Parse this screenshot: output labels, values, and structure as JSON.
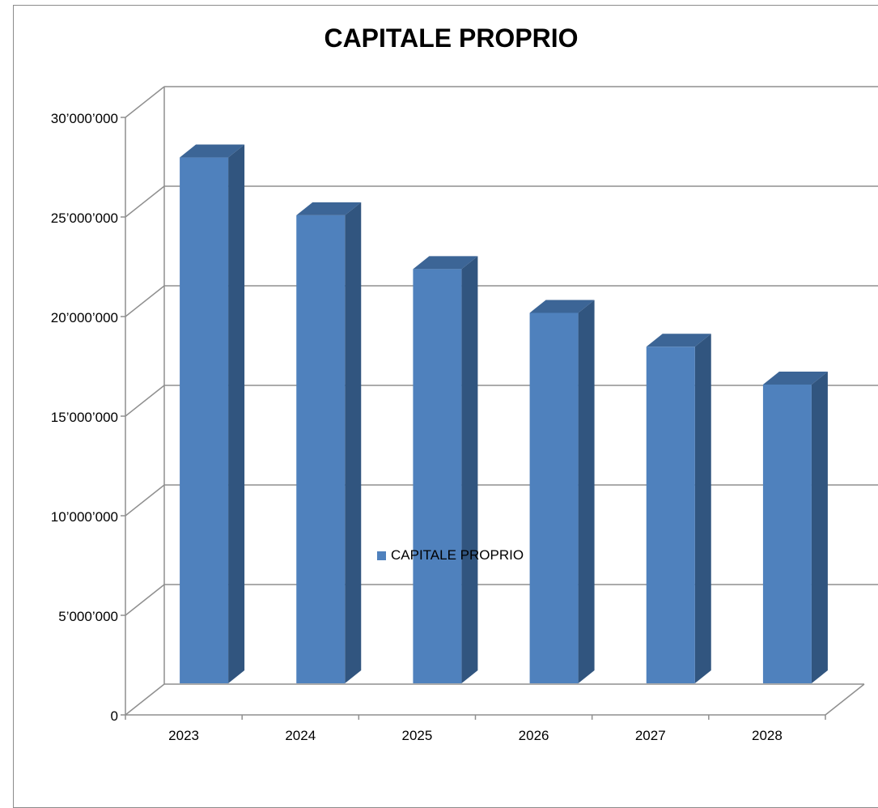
{
  "chart_data": {
    "type": "bar",
    "title": "CAPITALE PROPRIO",
    "categories": [
      "2023",
      "2024",
      "2025",
      "2026",
      "2027",
      "2028"
    ],
    "series": [
      {
        "name": "CAPITALE PROPRIO",
        "values": [
          26400000,
          23500000,
          20800000,
          18600000,
          16900000,
          15000000
        ],
        "color": "#4f81bd",
        "side_color": "#31557f",
        "top_color": "#3c6596"
      }
    ],
    "y_ticks": [
      "0",
      "5’000’000",
      "10’000’000",
      "15’000’000",
      "20’000’000",
      "25’000’000",
      "30’000’000"
    ],
    "ylim": [
      0,
      30000000
    ],
    "grid": true,
    "legend_position": "bottom",
    "three_d": true
  }
}
